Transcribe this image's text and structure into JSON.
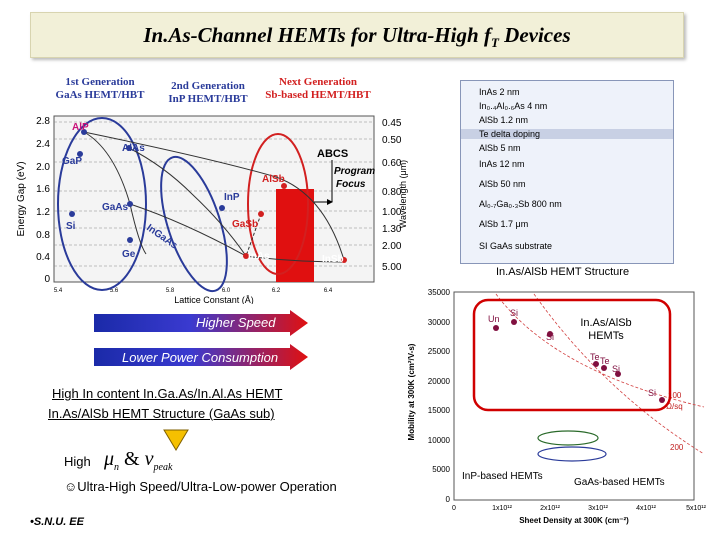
{
  "title": {
    "main": "In.As-Channel HEMTs for Ultra-High ",
    "f": "f",
    "sub": "T",
    "rest": " Devices"
  },
  "generations": {
    "first": [
      "1st Generation",
      "GaAs HEMT/HBT"
    ],
    "second": [
      "2nd Generation",
      "InP HEMT/HBT"
    ],
    "next": [
      "Next Generation",
      "Sb-based HEMT/HBT"
    ]
  },
  "bandgap_chart": {
    "ylabel": "Energy Gap (eV)",
    "xlabel": "Lattice Constant (Å)",
    "y2label": "Wavelength (μm)",
    "yticks": [
      "2.8",
      "2.4",
      "2.0",
      "1.6",
      "1.2",
      "0.8",
      "0.4",
      "0"
    ],
    "xticks": [
      "5.4",
      "5.6",
      "5.8",
      "6.0",
      "6.2",
      "6.4"
    ],
    "y2ticks": [
      "0.45",
      "0.50",
      "0.60",
      "0.80",
      "1.00",
      "1.30",
      "2.00",
      "5.00"
    ],
    "materials": [
      "AlP",
      "GaP",
      "AlAs",
      "GaAs",
      "Si",
      "Ge",
      "InGaAs",
      "InP",
      "AlSb",
      "GaSb",
      "InAs",
      "InSb"
    ],
    "abcs": "ABCS",
    "program_focus": [
      "Program",
      "Focus"
    ]
  },
  "structure": {
    "layers": [
      "InAs 2 nm",
      "In₀.₄Al₀.₆As 4 nm",
      "AlSb 1.2 nm",
      "Te delta doping",
      "AlSb 5 nm",
      "InAs 12 nm",
      "AlSb 50 nm",
      "Al₀.₇Ga₀.₃Sb 800 nm",
      "AlSb 1.7 μm",
      "SI GaAs substrate"
    ],
    "caption": "In.As/AlSb HEMT Structure"
  },
  "arrows": {
    "higher_speed": "Higher Speed",
    "lower_power": "Lower Power Consumption"
  },
  "notes": {
    "line1": "High In content In.Ga.As/In.Al.As HEMT",
    "line2": "In.As/AlSb HEMT Structure (GaAs sub)",
    "high": "High",
    "mu": "μ",
    "mu_sub": "n",
    "amp": "&",
    "v": "v",
    "v_sub": "peak",
    "ultra": "Ultra-High Speed/Ultra-Low-power Operation",
    "bullet": "☺"
  },
  "mobility_chart": {
    "ylabel": "Mobility at 300K (cm²/V-s)",
    "xlabel": "Sheet Density at 300K (cm⁻²)",
    "yticks": [
      "35000",
      "30000",
      "25000",
      "20000",
      "15000",
      "10000",
      "5000",
      "0"
    ],
    "xticks": [
      "0",
      "1x10¹²",
      "2x10¹²",
      "3x10¹²",
      "4x10¹²",
      "5x10¹²"
    ],
    "group_label": [
      "In.As/AlSb",
      "HEMTs"
    ],
    "inp_label": "InP-based HEMTs",
    "gaas_label": "GaAs-based HEMTs",
    "curve1": [
      "100",
      "Ω/sq"
    ],
    "curve2": "200",
    "points": [
      "Un",
      "Si",
      "Si",
      "Te",
      "Te",
      "Si",
      "Si"
    ]
  },
  "footer": "•S.N.U. EE"
}
